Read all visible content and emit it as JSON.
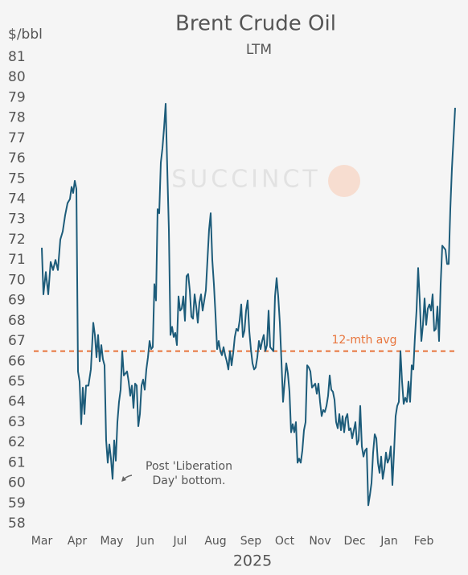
{
  "chart_data": {
    "type": "line",
    "title": "Brent Crude Oil",
    "subtitle": "LTM",
    "y_label": "$/bbl",
    "x_label": "2025",
    "watermark": "SUCCINCT",
    "color": "#1d5c7a",
    "grid": false,
    "x": [
      0,
      1,
      2.5,
      4,
      5.5,
      7,
      8.5,
      10,
      11.5,
      13,
      14.5,
      16,
      17.5,
      18.5,
      19.5,
      20.5,
      21.5,
      22.5,
      23.5,
      24.5,
      25.5,
      26.5,
      27.5,
      29,
      30.5,
      32,
      33,
      34,
      35,
      36,
      37,
      38,
      39,
      40,
      41,
      42,
      43,
      44,
      45,
      46,
      47,
      48,
      49,
      50,
      51,
      52,
      53,
      54,
      55,
      56,
      57,
      58,
      59,
      60,
      61,
      62,
      63,
      64,
      65,
      66,
      67,
      68,
      69,
      70,
      71,
      72,
      73,
      74,
      75,
      76,
      77,
      78,
      79,
      80,
      81,
      82,
      83,
      84,
      85,
      86,
      87,
      88,
      89,
      90,
      91,
      92,
      93,
      94,
      95,
      96,
      97,
      98,
      99,
      100,
      101,
      102,
      103,
      104,
      105,
      106,
      107,
      108,
      109,
      110,
      111,
      112,
      113,
      114,
      115,
      116,
      117,
      118,
      119,
      120,
      121,
      122,
      123,
      124,
      125,
      126,
      127,
      128,
      129,
      130,
      131,
      132,
      133,
      134,
      135,
      136,
      137,
      138,
      139,
      140,
      141,
      142,
      143,
      144,
      145,
      146,
      147,
      148,
      149,
      150,
      151,
      152,
      153,
      154,
      155,
      156,
      157,
      158,
      159,
      160,
      161,
      162,
      163,
      164,
      165,
      166,
      167,
      168,
      169,
      170,
      171,
      172,
      173,
      174,
      175,
      176,
      177,
      178,
      179,
      180,
      181,
      182,
      183,
      184,
      185,
      186,
      187,
      188,
      189,
      190,
      191,
      192,
      193,
      194,
      195,
      196,
      197,
      198,
      199,
      200,
      201,
      202,
      203,
      204,
      205,
      206,
      207,
      208,
      209,
      210,
      211,
      212,
      213,
      214,
      215,
      216,
      217,
      218,
      219,
      220,
      221,
      222,
      223,
      224,
      225,
      226,
      227,
      228,
      229,
      230,
      231,
      232,
      233,
      234,
      235,
      236,
      237,
      238,
      239,
      240,
      241,
      242,
      243,
      244,
      245,
      246,
      247,
      248,
      249,
      250,
      251,
      252,
      253,
      254,
      255,
      256,
      257
    ],
    "values": [
      71.6,
      69.3,
      70.4,
      69.3,
      70.9,
      70.5,
      71.0,
      70.5,
      72.0,
      72.4,
      73.2,
      73.8,
      74.0,
      74.6,
      74.3,
      74.9,
      74.5,
      65.5,
      65.0,
      62.9,
      64.7,
      63.4,
      64.8,
      64.8,
      65.6,
      67.9,
      67.3,
      66.2,
      67.3,
      66.0,
      66.8,
      66.1,
      65.8,
      62.1,
      61.0,
      61.9,
      61.2,
      60.2,
      62.1,
      61.1,
      63.0,
      64.0,
      64.6,
      66.5,
      65.3,
      65.4,
      65.5,
      65.0,
      64.3,
      64.8,
      63.7,
      64.9,
      64.8,
      62.8,
      63.4,
      64.8,
      65.1,
      64.6,
      65.6,
      66.2,
      67.0,
      66.6,
      66.7,
      69.8,
      69.0,
      73.5,
      73.3,
      75.8,
      76.5,
      77.5,
      78.7,
      75.5,
      72.5,
      67.3,
      67.7,
      67.2,
      67.4,
      66.8,
      69.2,
      68.5,
      68.6,
      69.2,
      68.0,
      70.2,
      70.3,
      69.5,
      68.2,
      68.1,
      69.3,
      68.7,
      67.9,
      68.9,
      69.3,
      68.5,
      69.0,
      69.5,
      71.0,
      72.5,
      73.3,
      71.0,
      69.8,
      68.3,
      66.6,
      67.0,
      66.5,
      66.3,
      66.7,
      66.3,
      66.0,
      65.6,
      66.5,
      65.8,
      66.4,
      67.2,
      67.6,
      67.5,
      68.0,
      68.8,
      67.2,
      67.5,
      68.5,
      69.0,
      67.5,
      66.6,
      65.9,
      65.6,
      65.7,
      66.2,
      67.0,
      66.6,
      67.0,
      67.3,
      66.5,
      66.8,
      68.5,
      66.7,
      66.6,
      66.5,
      69.2,
      70.1,
      69.2,
      67.9,
      66.0,
      64.0,
      65.0,
      65.9,
      65.4,
      64.5,
      62.5,
      62.9,
      62.5,
      63.0,
      61.0,
      61.2,
      61.0,
      61.6,
      62.6,
      63.0,
      65.8,
      65.7,
      65.5,
      64.7,
      64.8,
      64.9,
      64.4,
      64.9,
      64.0,
      63.3,
      63.6,
      63.5,
      63.8,
      64.3,
      65.3,
      64.6,
      64.5,
      64.1,
      63.0,
      62.7,
      63.4,
      62.6,
      63.3,
      62.5,
      63.2,
      63.4,
      62.6,
      62.7,
      62.2,
      62.6,
      63.0,
      61.9,
      62.1,
      63.8,
      61.8,
      61.3,
      61.6,
      61.7,
      58.9,
      59.4,
      60.0,
      61.5,
      62.4,
      62.2,
      61.0,
      60.5,
      61.3,
      60.2,
      60.7,
      61.5,
      61.0,
      61.2,
      61.8,
      59.9,
      61.5,
      63.3,
      63.8,
      64.0,
      66.5,
      65.0,
      63.9,
      64.2,
      64.0,
      65.0,
      64.0,
      65.8,
      65.6,
      67.2,
      68.5,
      70.6,
      69.0,
      67.0,
      67.8,
      69.1,
      67.8,
      68.6,
      68.8,
      68.5,
      69.3,
      67.5,
      67.6,
      68.7,
      67.0,
      69.8,
      71.7,
      71.6,
      71.5,
      70.8,
      70.8,
      73.5,
      75.5,
      77.0,
      78.5
    ],
    "xlim": [
      -5,
      258
    ],
    "xticks": [
      {
        "value": 0,
        "label": "Mar"
      },
      {
        "value": 22,
        "label": "Apr"
      },
      {
        "value": 43.5,
        "label": "May"
      },
      {
        "value": 64.5,
        "label": "Jun"
      },
      {
        "value": 86,
        "label": "Jul"
      },
      {
        "value": 108,
        "label": "Aug"
      },
      {
        "value": 130,
        "label": "Sep"
      },
      {
        "value": 151,
        "label": "Oct"
      },
      {
        "value": 173,
        "label": "Nov"
      },
      {
        "value": 194.5,
        "label": "Dec"
      },
      {
        "value": 216,
        "label": "Jan"
      },
      {
        "value": 237.5,
        "label": "Feb"
      }
    ],
    "ylim": [
      58,
      81
    ],
    "yticks": [
      58,
      59,
      60,
      61,
      62,
      63,
      64,
      65,
      66,
      67,
      68,
      69,
      70,
      71,
      72,
      73,
      74,
      75,
      76,
      77,
      78,
      79,
      80,
      81
    ],
    "reference_line": {
      "value": 66.5,
      "label": "12-mth avg",
      "color": "#e8743b"
    },
    "annotation": "Post 'Liberation Day' bottom."
  }
}
